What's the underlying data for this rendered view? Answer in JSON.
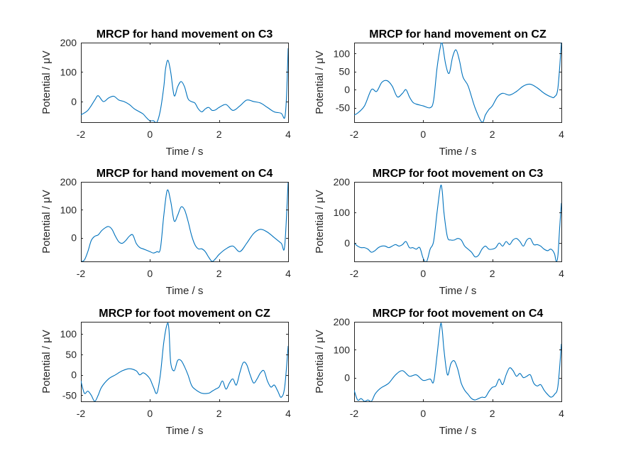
{
  "colors": {
    "line": "#0072BD",
    "axis": "#262626",
    "background": "#ffffff"
  },
  "chart_data": [
    {
      "type": "line",
      "title": "MRCP for hand movement on C3",
      "xlabel": "Time / s",
      "ylabel": "Potential / μV",
      "xlim": [
        -2,
        4
      ],
      "ylim": [
        -70,
        200
      ],
      "xticks": [
        -2,
        0,
        2,
        4
      ],
      "yticks": [
        0,
        100,
        200
      ],
      "grid": false,
      "series": [
        {
          "x": [
            -2,
            -1.8,
            -1.6,
            -1.5,
            -1.35,
            -1.2,
            -1.05,
            -0.9,
            -0.75,
            -0.6,
            -0.45,
            -0.3,
            -0.2,
            -0.1,
            0,
            0.1,
            0.2,
            0.3,
            0.4,
            0.45,
            0.52,
            0.6,
            0.7,
            0.8,
            0.9,
            1.0,
            1.1,
            1.2,
            1.3,
            1.4,
            1.5,
            1.6,
            1.7,
            1.8,
            1.9,
            2.0,
            2.2,
            2.4,
            2.6,
            2.8,
            3.0,
            3.2,
            3.4,
            3.6,
            3.8,
            3.9,
            3.95,
            4.0
          ],
          "y": [
            -45,
            -30,
            5,
            20,
            0,
            12,
            18,
            5,
            0,
            -10,
            -25,
            -35,
            -42,
            -55,
            -65,
            -65,
            -70,
            -30,
            50,
            110,
            140,
            100,
            20,
            50,
            68,
            50,
            10,
            0,
            -5,
            -25,
            -35,
            -25,
            -20,
            -30,
            -28,
            -20,
            -10,
            -30,
            -15,
            5,
            0,
            -5,
            -20,
            -35,
            -40,
            -55,
            10,
            180
          ]
        }
      ]
    },
    {
      "type": "line",
      "title": "MRCP for hand movement on CZ",
      "xlabel": "Time / s",
      "ylabel": "Potential / μV",
      "xlim": [
        -2,
        4
      ],
      "ylim": [
        -90,
        130
      ],
      "xticks": [
        -2,
        0,
        2,
        4
      ],
      "yticks": [
        -50,
        0,
        50,
        100
      ],
      "grid": false,
      "series": [
        {
          "x": [
            -2,
            -1.9,
            -1.7,
            -1.5,
            -1.35,
            -1.2,
            -1.05,
            -0.9,
            -0.75,
            -0.6,
            -0.5,
            -0.4,
            -0.3,
            -0.2,
            0,
            0.2,
            0.3,
            0.4,
            0.5,
            0.55,
            0.65,
            0.75,
            0.85,
            0.95,
            1.05,
            1.15,
            1.3,
            1.5,
            1.7,
            1.8,
            1.9,
            2.0,
            2.15,
            2.3,
            2.5,
            2.7,
            2.9,
            3.1,
            3.3,
            3.5,
            3.7,
            3.8,
            3.9,
            4.0
          ],
          "y": [
            -70,
            -65,
            -45,
            0,
            -5,
            20,
            25,
            10,
            -20,
            -10,
            0,
            -20,
            -35,
            -40,
            -45,
            -50,
            -30,
            60,
            120,
            128,
            70,
            45,
            90,
            110,
            80,
            35,
            10,
            -50,
            -90,
            -70,
            -55,
            -45,
            -20,
            -10,
            -15,
            -5,
            10,
            15,
            5,
            -10,
            -20,
            -20,
            5,
            130
          ]
        }
      ]
    },
    {
      "type": "line",
      "title": "MRCP for hand movement on C4",
      "xlabel": "Time / s",
      "ylabel": "Potential / μV",
      "xlim": [
        -2,
        4
      ],
      "ylim": [
        -85,
        200
      ],
      "xticks": [
        -2,
        0,
        2,
        4
      ],
      "yticks": [
        0,
        100,
        200
      ],
      "grid": false,
      "series": [
        {
          "x": [
            -2,
            -1.9,
            -1.8,
            -1.7,
            -1.6,
            -1.5,
            -1.4,
            -1.3,
            -1.2,
            -1.1,
            -1.0,
            -0.9,
            -0.8,
            -0.7,
            -0.6,
            -0.5,
            -0.4,
            -0.3,
            -0.2,
            -0.1,
            0,
            0.1,
            0.2,
            0.3,
            0.4,
            0.5,
            0.6,
            0.7,
            0.8,
            0.9,
            1.0,
            1.1,
            1.2,
            1.3,
            1.4,
            1.5,
            1.6,
            1.7,
            1.8,
            1.9,
            2.0,
            2.2,
            2.4,
            2.6,
            2.8,
            3.0,
            3.2,
            3.4,
            3.6,
            3.8,
            3.9,
            4.0
          ],
          "y": [
            -85,
            -80,
            -50,
            -10,
            5,
            10,
            25,
            35,
            40,
            30,
            5,
            -15,
            -20,
            -10,
            5,
            10,
            -20,
            -35,
            -40,
            -45,
            -50,
            -55,
            -50,
            -40,
            80,
            170,
            130,
            60,
            80,
            110,
            100,
            60,
            10,
            -25,
            -40,
            -40,
            -50,
            -70,
            -85,
            -75,
            -60,
            -40,
            -30,
            -50,
            -20,
            15,
            30,
            20,
            0,
            -20,
            -30,
            200
          ]
        }
      ]
    },
    {
      "type": "line",
      "title": "MRCP for foot movement on C3",
      "xlabel": "Time / s",
      "ylabel": "Potential / μV",
      "xlim": [
        -2,
        4
      ],
      "ylim": [
        -60,
        200
      ],
      "xticks": [
        -2,
        0,
        2,
        4
      ],
      "yticks": [
        0,
        100,
        200
      ],
      "grid": false,
      "series": [
        {
          "x": [
            -2,
            -1.9,
            -1.8,
            -1.7,
            -1.6,
            -1.5,
            -1.4,
            -1.3,
            -1.2,
            -1.1,
            -1.0,
            -0.9,
            -0.8,
            -0.7,
            -0.6,
            -0.5,
            -0.4,
            -0.3,
            -0.2,
            -0.1,
            0,
            0.1,
            0.2,
            0.3,
            0.4,
            0.5,
            0.55,
            0.6,
            0.7,
            0.8,
            0.9,
            1.0,
            1.1,
            1.2,
            1.3,
            1.4,
            1.5,
            1.6,
            1.7,
            1.8,
            1.9,
            2.0,
            2.1,
            2.2,
            2.3,
            2.4,
            2.5,
            2.6,
            2.7,
            2.8,
            2.9,
            3.0,
            3.1,
            3.2,
            3.3,
            3.4,
            3.5,
            3.6,
            3.7,
            3.8,
            3.85,
            3.9,
            3.95,
            4.0
          ],
          "y": [
            0,
            -10,
            -15,
            -15,
            -20,
            -30,
            -25,
            -15,
            -10,
            -10,
            -15,
            -10,
            -5,
            -10,
            -5,
            5,
            -15,
            -15,
            -20,
            -15,
            -50,
            -60,
            -20,
            5,
            100,
            185,
            170,
            100,
            20,
            10,
            10,
            15,
            10,
            -10,
            -20,
            -30,
            -45,
            -40,
            -20,
            -10,
            -20,
            -20,
            -15,
            0,
            -10,
            5,
            -5,
            10,
            15,
            5,
            -10,
            10,
            15,
            -5,
            -5,
            -10,
            -20,
            -25,
            -20,
            -35,
            -60,
            -40,
            50,
            130
          ]
        }
      ]
    },
    {
      "type": "line",
      "title": "MRCP for foot movement on CZ",
      "xlabel": "Time / s",
      "ylabel": "Potential / μV",
      "xlim": [
        -2,
        4
      ],
      "ylim": [
        -65,
        130
      ],
      "xticks": [
        -2,
        0,
        2,
        4
      ],
      "yticks": [
        -50,
        0,
        50,
        100
      ],
      "grid": false,
      "series": [
        {
          "x": [
            -2,
            -1.9,
            -1.8,
            -1.7,
            -1.6,
            -1.5,
            -1.4,
            -1.2,
            -1.0,
            -0.8,
            -0.6,
            -0.4,
            -0.3,
            -0.2,
            -0.1,
            0,
            0.1,
            0.2,
            0.3,
            0.4,
            0.5,
            0.55,
            0.6,
            0.7,
            0.8,
            0.9,
            1.0,
            1.1,
            1.2,
            1.3,
            1.5,
            1.7,
            1.8,
            1.9,
            2.0,
            2.1,
            2.2,
            2.3,
            2.4,
            2.5,
            2.6,
            2.7,
            2.8,
            2.9,
            3.0,
            3.1,
            3.2,
            3.3,
            3.4,
            3.5,
            3.6,
            3.7,
            3.8,
            3.9,
            4.0
          ],
          "y": [
            -15,
            -45,
            -40,
            -50,
            -65,
            -50,
            -30,
            -10,
            0,
            10,
            15,
            10,
            0,
            5,
            0,
            -10,
            -30,
            -45,
            0,
            80,
            125,
            110,
            30,
            10,
            35,
            35,
            20,
            0,
            -25,
            -35,
            -45,
            -45,
            -40,
            -35,
            -30,
            -15,
            -35,
            -20,
            -10,
            -25,
            5,
            30,
            25,
            0,
            -20,
            -10,
            5,
            10,
            -15,
            -30,
            -25,
            -40,
            -55,
            -30,
            70
          ]
        }
      ]
    },
    {
      "type": "line",
      "title": "MRCP for foot movement on C4",
      "xlabel": "Time / s",
      "ylabel": "Potential / μV",
      "xlim": [
        -2,
        4
      ],
      "ylim": [
        -85,
        200
      ],
      "xticks": [
        -2,
        0,
        2,
        4
      ],
      "yticks": [
        0,
        100,
        200
      ],
      "grid": false,
      "series": [
        {
          "x": [
            -2,
            -1.9,
            -1.8,
            -1.7,
            -1.6,
            -1.5,
            -1.4,
            -1.3,
            -1.2,
            -1.0,
            -0.8,
            -0.6,
            -0.4,
            -0.2,
            0,
            0.2,
            0.3,
            0.4,
            0.5,
            0.55,
            0.6,
            0.7,
            0.8,
            0.9,
            1.0,
            1.1,
            1.2,
            1.3,
            1.4,
            1.5,
            1.6,
            1.7,
            1.8,
            1.9,
            2.0,
            2.1,
            2.2,
            2.3,
            2.4,
            2.5,
            2.6,
            2.7,
            2.8,
            2.9,
            3.0,
            3.1,
            3.2,
            3.3,
            3.4,
            3.5,
            3.6,
            3.7,
            3.8,
            3.9,
            4.0
          ],
          "y": [
            -45,
            -80,
            -75,
            -85,
            -80,
            -85,
            -60,
            -45,
            -35,
            -20,
            10,
            25,
            5,
            10,
            -10,
            -5,
            -15,
            80,
            190,
            170,
            100,
            10,
            50,
            60,
            30,
            -20,
            -45,
            -60,
            -75,
            -80,
            -75,
            -70,
            -70,
            -50,
            -35,
            -30,
            -5,
            -25,
            10,
            35,
            25,
            5,
            15,
            0,
            5,
            10,
            -20,
            -30,
            -25,
            -45,
            -60,
            -70,
            -60,
            -30,
            120
          ]
        }
      ]
    }
  ]
}
